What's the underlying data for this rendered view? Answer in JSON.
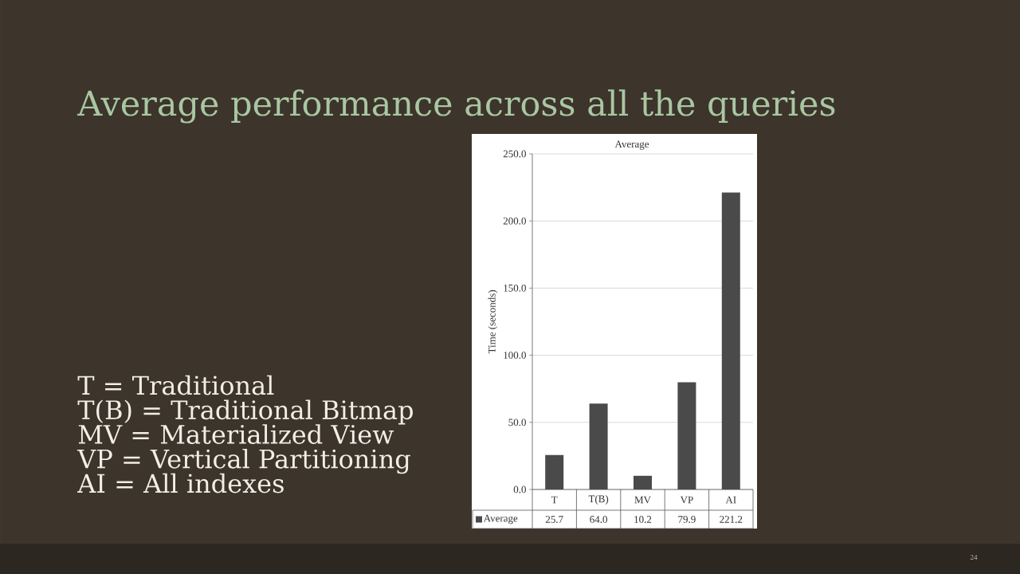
{
  "chart_data": {
    "type": "bar",
    "title": "Average performance across all the queries",
    "subtitle": "Average",
    "ylabel": "Time (seconds)",
    "categories": [
      "T",
      "T(B)",
      "MV",
      "VP",
      "AI"
    ],
    "series": [
      {
        "name": "Average",
        "color": "#4a4a4a",
        "values": [
          25.7,
          64.0,
          10.2,
          79.9,
          221.2
        ],
        "value_labels": [
          "25.7",
          "64.0",
          "10.2",
          "79.9",
          "221.2"
        ]
      }
    ],
    "ylim": [
      0,
      250
    ],
    "yticks": [
      {
        "value": 0,
        "label": "0.0"
      },
      {
        "value": 50,
        "label": "50.0"
      },
      {
        "value": 100,
        "label": "100.0"
      },
      {
        "value": 150,
        "label": "150.0"
      },
      {
        "value": 200,
        "label": "200.0"
      },
      {
        "value": 250,
        "label": "250.0"
      }
    ],
    "grid": "y",
    "legend": "bottom",
    "annotations": [
      "T = Traditional",
      "T(B) = Traditional Bitmap",
      "MV = Materialized View",
      "VP = Vertical Partitioning",
      "AI = All indexes",
      "24"
    ]
  }
}
